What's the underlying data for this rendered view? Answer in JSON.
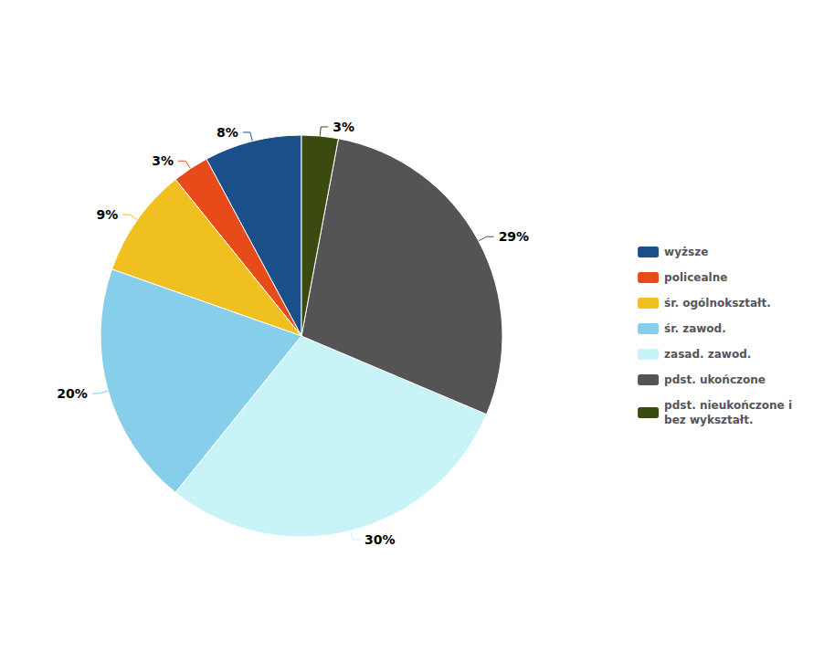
{
  "chart_data": {
    "type": "pie",
    "categories": [
      "wyższe",
      "policealne",
      "śr. ogólnokształt.",
      "śr. zawod.",
      "zasad. zawod.",
      "pdst. ukończone",
      "pdst. nieukończone i\nbez wykształt."
    ],
    "values": [
      8,
      3,
      9,
      20,
      30,
      29,
      3
    ],
    "value_labels": [
      "8%",
      "3%",
      "9%",
      "20%",
      "30%",
      "29%",
      "3%"
    ],
    "colors": [
      "#1a4f8a",
      "#e84b1a",
      "#f0c020",
      "#87ceeb",
      "#c8f4f8",
      "#545454",
      "#3a4a10"
    ],
    "data_labels": true,
    "legend": "right"
  }
}
